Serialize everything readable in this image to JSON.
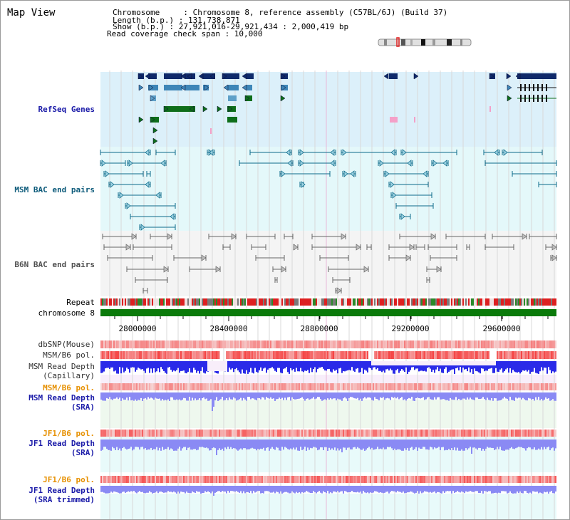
{
  "app": {
    "title": "Map View"
  },
  "header": {
    "chromosome": "Chromosome     : Chromosome 8, reference assembly (C57BL/6J) (Build 37)",
    "length": "Length (b.p.) : 131,738,871",
    "show": "Show (b.p.) : 27,921,016-29,921,434 : 2,000,419 bp",
    "coverage": "Read coverage check span : 10,000"
  },
  "tracks": {
    "refseq": "RefSeq Genes",
    "msm_bac": "MSM BAC end pairs",
    "b6n_bac": "B6N BAC end pairs",
    "repeat": "Repeat",
    "chromosome": "chromosome 8",
    "dbsnp": "dbSNP(Mouse)",
    "msm_b6_pol": "MSM/B6 pol.",
    "msm_depth_cap_1": "MSM Read Depth",
    "msm_depth_cap_2": "(Capillary)",
    "msm_b6_pol_2": "MSM/B6 pol.",
    "msm_depth_sra_1": "MSM Read Depth",
    "msm_depth_sra_2": "(SRA)",
    "jf1_b6_pol": "JF1/B6 pol.",
    "jf1_depth_sra_1": "JF1 Read Depth",
    "jf1_depth_sra_2": "(SRA)",
    "jf1_b6_pol_2": "JF1/B6 pol.",
    "jf1_depth_trim_1": "JF1 Read Depth",
    "jf1_depth_trim_2": "(SRA trimmed)"
  },
  "axis": {
    "ticks": [
      "28000000",
      "28400000",
      "28800000",
      "29200000",
      "29600000"
    ],
    "range_start": 27921016,
    "range_end": 29921434
  },
  "colors": {
    "refseq_bg": "#dcf0fa",
    "bac_bg": "#e4f8fa",
    "b6n_bg": "#f4f4f4",
    "gene_dark": "#0f2a6a",
    "gene_mid": "#3e86b8",
    "gene_light": "#5fa0c8",
    "gene_green": "#0e6e1a",
    "bac_teal": "#0c6a8a",
    "b6n_gray": "#666666",
    "chrom_green": "#0a7a0a",
    "depth_blue": "#2a2ae8",
    "depth_light": "#8a8af4",
    "pol_red": "#f25050"
  }
}
